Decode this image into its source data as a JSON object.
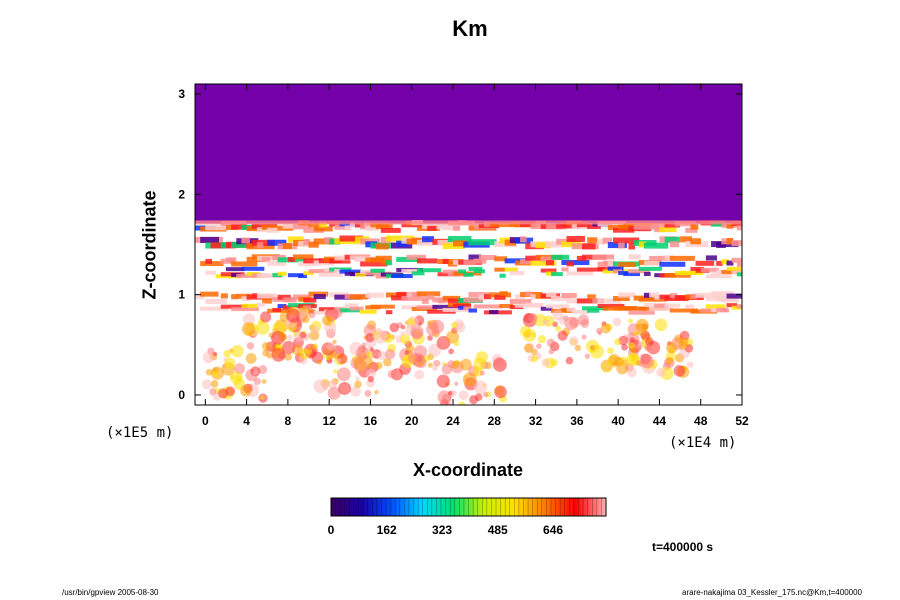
{
  "chart_data": {
    "type": "heatmap",
    "title": "Km",
    "xlabel": "X-coordinate",
    "ylabel": "Z-coordinate",
    "x_unit": "(×1E4 m)",
    "y_unit": "(×1E5 m)",
    "xlim": [
      -1,
      52
    ],
    "ylim": [
      -0.1,
      3.1
    ],
    "x_ticks": [
      "0",
      "4",
      "8",
      "12",
      "16",
      "20",
      "24",
      "28",
      "32",
      "36",
      "40",
      "44",
      "48",
      "52"
    ],
    "y_ticks": [
      "0",
      "1",
      "2",
      "3"
    ],
    "colorbar": {
      "range": [
        0,
        800
      ],
      "ticks": [
        "0",
        "162",
        "323",
        "485",
        "646"
      ],
      "colors": [
        "#3a0063",
        "#1a00a8",
        "#0050ff",
        "#00d8ff",
        "#00e070",
        "#c8f000",
        "#ffe000",
        "#ff7a00",
        "#ff0000",
        "#ffb0b0"
      ]
    },
    "regions": [
      {
        "name": "upper layer",
        "z_range": [
          1.72,
          3.1
        ],
        "value": 0,
        "color": "#7300a8"
      },
      {
        "name": "lower layer",
        "z_range": [
          -0.1,
          1.72
        ],
        "description": "patchy high values"
      }
    ],
    "grid": false
  },
  "annotations": {
    "time": "t=400000 s",
    "footer_left": "/usr/bin/gpview 2005-08-30",
    "footer_right": "arare-nakajima  03_Kessler_175.nc@Km,t=400000"
  },
  "colors": {
    "background": "#ffffff",
    "upper": "#7300a8"
  }
}
